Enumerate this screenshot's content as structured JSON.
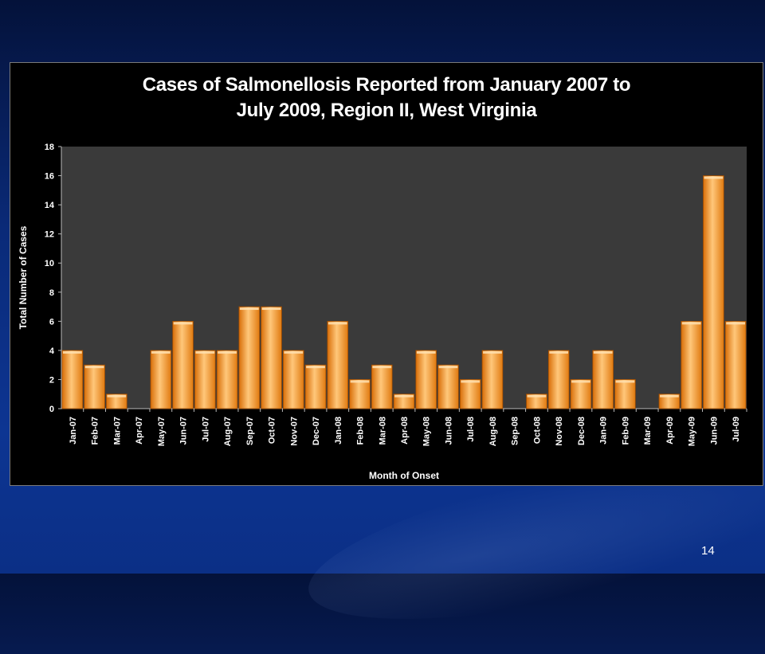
{
  "slide": {
    "page_number": "14"
  },
  "chart_data": {
    "type": "bar",
    "title_line1": "Cases of Salmonellosis Reported from January 2007 to",
    "title_line2": "July 2009,  Region II, West Virginia",
    "xlabel": "Month of Onset",
    "ylabel": "Total Number of Cases",
    "ylim": [
      0,
      18
    ],
    "yticks": [
      0,
      2,
      4,
      6,
      8,
      10,
      12,
      14,
      16,
      18
    ],
    "grid": false,
    "legend": "none",
    "categories": [
      "Jan-07",
      "Feb-07",
      "Mar-07",
      "Apr-07",
      "May-07",
      "Jun-07",
      "Jul-07",
      "Aug-07",
      "Sep-07",
      "Oct-07",
      "Nov-07",
      "Dec-07",
      "Jan-08",
      "Feb-08",
      "Mar-08",
      "Apr-08",
      "May-08",
      "Jun-08",
      "Jul-08",
      "Aug-08",
      "Sep-08",
      "Oct-08",
      "Nov-08",
      "Dec-08",
      "Jan-09",
      "Feb-09",
      "Mar-09",
      "Apr-09",
      "May-09",
      "Jun-09",
      "Jul-09"
    ],
    "values": [
      4,
      3,
      1,
      0,
      4,
      6,
      4,
      4,
      7,
      7,
      4,
      3,
      6,
      2,
      3,
      1,
      4,
      3,
      2,
      4,
      0,
      1,
      4,
      2,
      4,
      2,
      0,
      1,
      6,
      16,
      6
    ],
    "colors": {
      "bar": "#f7941d",
      "bar_light": "#ffc77a",
      "plot_bg": "#3a3a3a",
      "text": "#ffffff"
    }
  }
}
